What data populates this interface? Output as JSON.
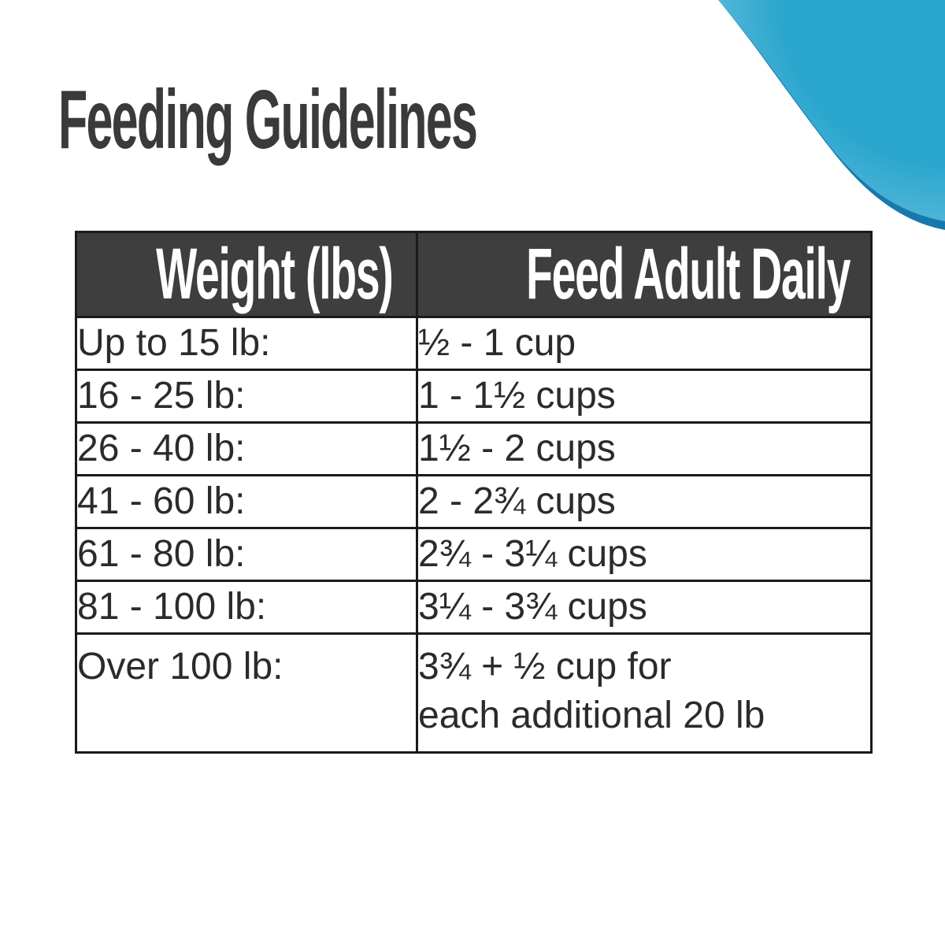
{
  "title": "Feeding Guidelines",
  "colors": {
    "header_bg": "#3e3e3e",
    "header_text": "#ffffff",
    "body_text": "#2b2b2b",
    "border": "#1a1a1a",
    "title_text": "#3a3a3a",
    "swoosh_main": "#2aa5ce",
    "swoosh_mid": "#4db5d6",
    "swoosh_light": "#9ad8e6",
    "swoosh_edge": "#1878ae"
  },
  "decoration": {
    "name": "teal-swoosh-top-right"
  },
  "table": {
    "columns": [
      {
        "label": "Weight (lbs)"
      },
      {
        "label": "Feed Adult Daily"
      }
    ],
    "rows": [
      {
        "weight": "Up to 15 lb:",
        "feed": "½ - 1 cup"
      },
      {
        "weight": "16 - 25 lb:",
        "feed": "1 - 1½ cups"
      },
      {
        "weight": "26 - 40 lb:",
        "feed": "1½ - 2 cups"
      },
      {
        "weight": "41 - 60 lb:",
        "feed": "2 - 2¾ cups"
      },
      {
        "weight": "61 - 80 lb:",
        "feed": "2¾ - 3¼ cups"
      },
      {
        "weight": "81 - 100 lb:",
        "feed": "3¼ - 3¾ cups"
      },
      {
        "weight": "Over 100 lb:",
        "feed": "3¾ + ½ cup for\neach additional 20 lb"
      }
    ]
  }
}
